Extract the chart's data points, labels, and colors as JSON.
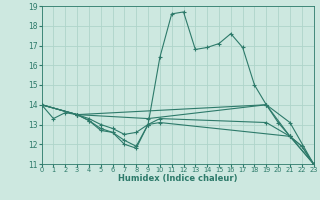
{
  "xlabel": "Humidex (Indice chaleur)",
  "bg_color": "#cde8e0",
  "grid_color": "#afd4ca",
  "line_color": "#2d7a6a",
  "xlim": [
    0,
    23
  ],
  "ylim": [
    11,
    19
  ],
  "yticks": [
    11,
    12,
    13,
    14,
    15,
    16,
    17,
    18,
    19
  ],
  "xticks": [
    0,
    1,
    2,
    3,
    4,
    5,
    6,
    7,
    8,
    9,
    10,
    11,
    12,
    13,
    14,
    15,
    16,
    17,
    18,
    19,
    20,
    21,
    22,
    23
  ],
  "lines": [
    {
      "x": [
        0,
        1,
        2,
        3,
        4,
        5,
        6,
        7,
        8,
        9,
        10,
        11,
        12,
        13,
        14,
        15,
        16,
        17,
        18,
        19,
        20,
        21,
        22,
        23
      ],
      "y": [
        14.0,
        13.3,
        13.6,
        13.5,
        13.2,
        12.7,
        12.6,
        12.0,
        11.8,
        13.0,
        16.4,
        18.6,
        18.7,
        16.8,
        16.9,
        17.1,
        17.6,
        16.9,
        15.0,
        14.0,
        13.1,
        12.4,
        11.9,
        11.0
      ]
    },
    {
      "x": [
        0,
        3,
        19,
        21,
        23
      ],
      "y": [
        14.0,
        13.5,
        14.0,
        13.1,
        11.0
      ]
    },
    {
      "x": [
        0,
        3,
        9,
        19,
        21,
        23
      ],
      "y": [
        14.0,
        13.5,
        13.3,
        14.0,
        12.4,
        11.0
      ]
    },
    {
      "x": [
        0,
        3,
        4,
        5,
        6,
        7,
        8,
        9,
        10,
        19,
        21,
        23
      ],
      "y": [
        14.0,
        13.5,
        13.3,
        13.0,
        12.8,
        12.5,
        12.6,
        13.0,
        13.3,
        13.1,
        12.4,
        11.0
      ]
    },
    {
      "x": [
        0,
        3,
        4,
        5,
        6,
        7,
        8,
        9,
        10,
        21,
        22,
        23
      ],
      "y": [
        14.0,
        13.5,
        13.2,
        12.8,
        12.6,
        12.2,
        11.9,
        13.0,
        13.1,
        12.4,
        11.9,
        11.0
      ]
    }
  ]
}
